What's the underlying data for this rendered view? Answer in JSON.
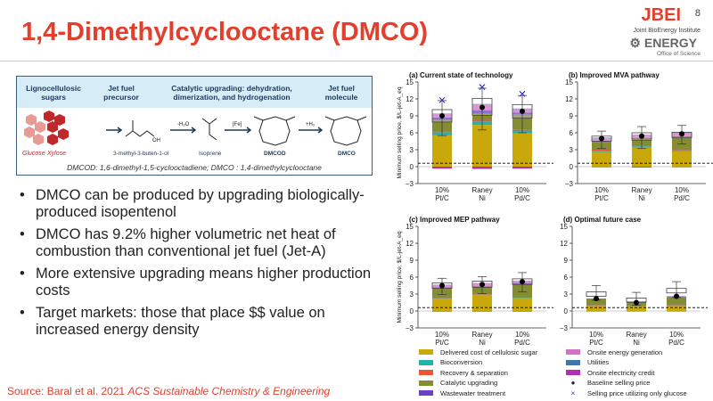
{
  "slide": {
    "title": "1,4-Dimethylcyclooctane (DMCO)",
    "page_number": "8",
    "logo": {
      "jbei": "JBEI",
      "jbei_sub": "Joint BioEnergy Institute",
      "doe": "ENERGY",
      "doe_sub": "Office of Science"
    },
    "source_prefix": "Source: Baral et al. 2021 ",
    "source_journal": "ACS Sustainable Chemistry & Engineering"
  },
  "diagram": {
    "headers": [
      "Lignocellulosic sugars",
      "Jet fuel precursor",
      "Catalytic upgrading: dehydration, dimerization, and hydrogenation",
      "Jet fuel molecule"
    ],
    "labels": {
      "glucose": "Glucose",
      "xylose": "Xylose",
      "precursor": "3-methyl-3-buten-1-ol",
      "oh": "OH",
      "isoprene": "Isoprene",
      "dmcod": "DMCOD",
      "dmco": "DMCO",
      "step1": "-H₂O",
      "step2": "[Fe]",
      "step3": "+H₂"
    },
    "caption": "DMCOD: 1,6-dimethyl-1,5-cyclooctadiene; DMCO : 1,4-dimethylcyclooctane"
  },
  "bullets": [
    "DMCO can be produced by upgrading biologically-produced isopentenol",
    "DMCO has 9.2% higher volumetric net heat of combustion than conventional jet fuel (Jet-A)",
    "More extensive upgrading means higher production costs",
    "Target markets: those that place $$ value on increased energy density"
  ],
  "chart_data": {
    "type": "bar",
    "stacked": true,
    "ylabel": "Minimum selling price, $/L-jet-A_eq",
    "ylim": [
      -3,
      15
    ],
    "yticks": [
      -3,
      0,
      3,
      6,
      9,
      12,
      15
    ],
    "categories": [
      "10%\nPt/C",
      "Raney\nNi",
      "10%\nPd/C"
    ],
    "reference_line": 0.6,
    "components": [
      {
        "name": "Delivered cost of cellulosic sugar",
        "color": "#c9a80c"
      },
      {
        "name": "Bioconversion",
        "color": "#1fb5ad"
      },
      {
        "name": "Recovery & separation",
        "color": "#ea5535"
      },
      {
        "name": "Catalytic upgrading",
        "color": "#848c34"
      },
      {
        "name": "Wastewater treatment",
        "color": "#6a40c4"
      },
      {
        "name": "Onsite energy generation",
        "color": "#d273c2"
      },
      {
        "name": "Utilities",
        "color": "#3d78a8"
      },
      {
        "name": "Onsite electricity credit",
        "color": "#b12fb3"
      }
    ],
    "markers": [
      {
        "name": "Baseline selling price",
        "symbol": "●"
      },
      {
        "name": "Selling price utilizing only glucose",
        "symbol": "×"
      }
    ],
    "panels": [
      {
        "title": "(a) Current state of technology",
        "bars": [
          {
            "components": [
              5.6,
              0.5,
              0.2,
              2.0,
              0.4,
              0.6,
              0.1,
              -0.35
            ],
            "box": [
              7.9,
              10.1
            ],
            "whisker": [
              5.5,
              11.7
            ],
            "baseline": 9.0,
            "glucose_only": 11.8
          },
          {
            "components": [
              7.4,
              0.6,
              0.3,
              1.1,
              0.6,
              1.0,
              0.1,
              -0.4
            ],
            "box": [
              9.1,
              12.1
            ],
            "whisker": [
              6.5,
              13.9
            ],
            "baseline": 10.5,
            "glucose_only": 14.1
          },
          {
            "components": [
              5.9,
              0.5,
              0.2,
              2.6,
              0.4,
              0.6,
              0.1,
              -0.35
            ],
            "box": [
              8.6,
              11.0
            ],
            "whisker": [
              6.0,
              12.6
            ],
            "baseline": 9.8,
            "glucose_only": 12.9
          }
        ]
      },
      {
        "title": "(b) Improved MVA pathway",
        "bars": [
          {
            "components": [
              2.6,
              0.2,
              0.2,
              1.4,
              0.2,
              0.5,
              0.05,
              -0.1
            ],
            "box": [
              4.5,
              5.4
            ],
            "whisker": [
              3.2,
              6.3
            ],
            "baseline": 5.0
          },
          {
            "components": [
              3.4,
              0.2,
              0.1,
              1.2,
              0.2,
              0.5,
              0.05,
              -0.15
            ],
            "box": [
              4.7,
              6.0
            ],
            "whisker": [
              3.2,
              7.1
            ],
            "baseline": 5.4
          },
          {
            "components": [
              2.7,
              0.2,
              0.1,
              2.2,
              0.2,
              0.6,
              0.05,
              -0.1
            ],
            "box": [
              5.1,
              6.1
            ],
            "whisker": [
              4.0,
              7.3
            ],
            "baseline": 5.8
          }
        ]
      },
      {
        "title": "(c) Improved MEP pathway",
        "bars": [
          {
            "components": [
              2.2,
              0.1,
              0.05,
              1.65,
              0.2,
              0.4,
              0.05,
              -0.1
            ],
            "box": [
              4.0,
              5.0
            ],
            "whisker": [
              2.9,
              5.8
            ],
            "baseline": 4.5
          },
          {
            "components": [
              2.8,
              0.1,
              0.05,
              1.25,
              0.2,
              0.5,
              0.05,
              -0.1
            ],
            "box": [
              4.2,
              5.3
            ],
            "whisker": [
              3.1,
              6.1
            ],
            "baseline": 4.7
          },
          {
            "components": [
              2.3,
              0.1,
              0.05,
              2.25,
              0.3,
              0.3,
              0.05,
              -0.1
            ],
            "box": [
              4.7,
              5.7
            ],
            "whisker": [
              3.4,
              6.8
            ],
            "baseline": 5.2
          }
        ]
      },
      {
        "title": "(d) Optimal future case",
        "bars": [
          {
            "components": [
              1.0,
              0.05,
              0.05,
              1.0,
              0.1,
              0,
              0,
              -0.05
            ],
            "box": [
              2.6,
              3.4
            ],
            "whisker": [
              1.9,
              4.5
            ],
            "baseline": 2.2
          },
          {
            "components": [
              0.8,
              0.05,
              0.05,
              0.5,
              0.2,
              0,
              0,
              -0.05
            ],
            "box": [
              1.6,
              2.3
            ],
            "whisker": [
              1.0,
              3.3
            ],
            "baseline": 1.5
          },
          {
            "components": [
              1.0,
              0.05,
              0.05,
              1.4,
              0.1,
              0,
              0,
              -0.05
            ],
            "box": [
              3.2,
              4.0
            ],
            "whisker": [
              2.4,
              5.2
            ],
            "baseline": 2.6
          }
        ]
      }
    ]
  }
}
